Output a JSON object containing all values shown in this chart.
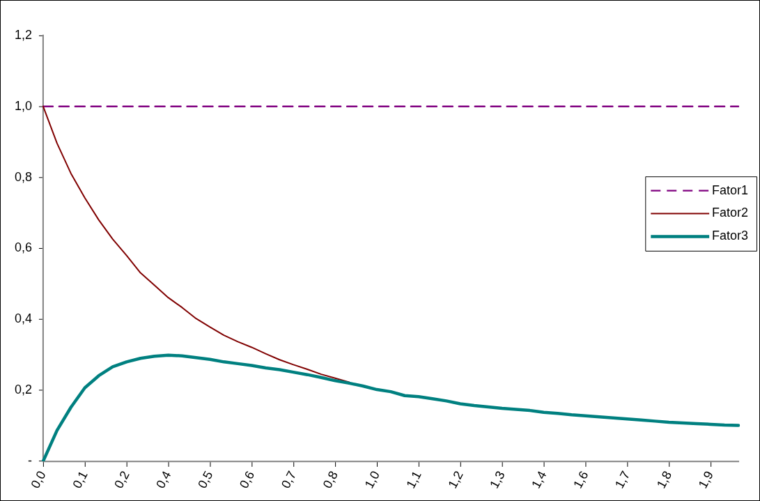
{
  "chart_data": {
    "type": "line",
    "categories": [
      "0,0",
      null,
      null,
      "0,1",
      null,
      null,
      "0,2",
      null,
      null,
      "0,4",
      null,
      null,
      "0,5",
      null,
      null,
      "0,6",
      null,
      null,
      "0,7",
      null,
      null,
      "0,8",
      null,
      null,
      "1,0",
      null,
      null,
      "1,1",
      null,
      null,
      "1,2",
      null,
      null,
      "1,3",
      null,
      null,
      "1,4",
      null,
      null,
      "1,6",
      null,
      null,
      "1,7",
      null,
      null,
      "1,8",
      null,
      null,
      "1,9",
      null,
      null
    ],
    "series": [
      {
        "name": "Fator1",
        "color": "#800080",
        "line_style": "dashed",
        "values": [
          1,
          1,
          1,
          1,
          1,
          1,
          1,
          1,
          1,
          1,
          1,
          1,
          1,
          1,
          1,
          1,
          1,
          1,
          1,
          1,
          1,
          1,
          1,
          1,
          1,
          1,
          1,
          1,
          1,
          1,
          1,
          1,
          1,
          1,
          1,
          1,
          1,
          1,
          1,
          1,
          1,
          1,
          1,
          1,
          1,
          1,
          1,
          1,
          1,
          1,
          1
        ]
      },
      {
        "name": "Fator2",
        "color": "#800000",
        "line_style": "solid",
        "values": [
          1.0,
          0.896,
          0.811,
          0.742,
          0.68,
          0.626,
          0.58,
          0.531,
          0.496,
          0.461,
          0.433,
          0.402,
          0.378,
          0.355,
          0.337,
          0.321,
          0.303,
          0.286,
          0.272,
          0.259,
          0.245,
          0.234,
          0.223,
          null,
          null,
          null,
          null,
          null,
          null,
          null,
          null,
          null,
          null,
          null,
          null,
          null,
          null,
          null,
          null,
          null,
          null,
          null,
          null,
          null,
          null,
          null,
          null,
          null,
          null,
          null,
          null
        ]
      },
      {
        "name": "Fator3",
        "color": "#008080",
        "line_style": "solid",
        "values": [
          0,
          0.087,
          0.152,
          0.207,
          0.241,
          0.266,
          0.28,
          0.29,
          0.296,
          0.299,
          0.297,
          0.292,
          0.287,
          0.28,
          0.275,
          0.27,
          0.263,
          0.258,
          0.251,
          0.244,
          0.236,
          0.227,
          0.22,
          0.212,
          0.202,
          0.196,
          0.185,
          0.182,
          0.176,
          0.17,
          0.162,
          0.157,
          0.153,
          0.149,
          0.146,
          0.143,
          0.138,
          0.135,
          0.131,
          0.128,
          0.125,
          0.122,
          0.119,
          0.116,
          0.113,
          0.11,
          0.108,
          0.106,
          0.104,
          0.102,
          0.101
        ]
      }
    ],
    "ylim": [
      0,
      1.2
    ],
    "yticks": [
      {
        "value": 0,
        "label": "-"
      },
      {
        "value": 0.2,
        "label": "0,2"
      },
      {
        "value": 0.4,
        "label": "0,4"
      },
      {
        "value": 0.6,
        "label": "0,6"
      },
      {
        "value": 0.8,
        "label": "0,8"
      },
      {
        "value": 1.0,
        "label": "1,0"
      },
      {
        "value": 1.2,
        "label": "1,2"
      }
    ],
    "grid": false,
    "legend": "right",
    "marker": "none"
  }
}
